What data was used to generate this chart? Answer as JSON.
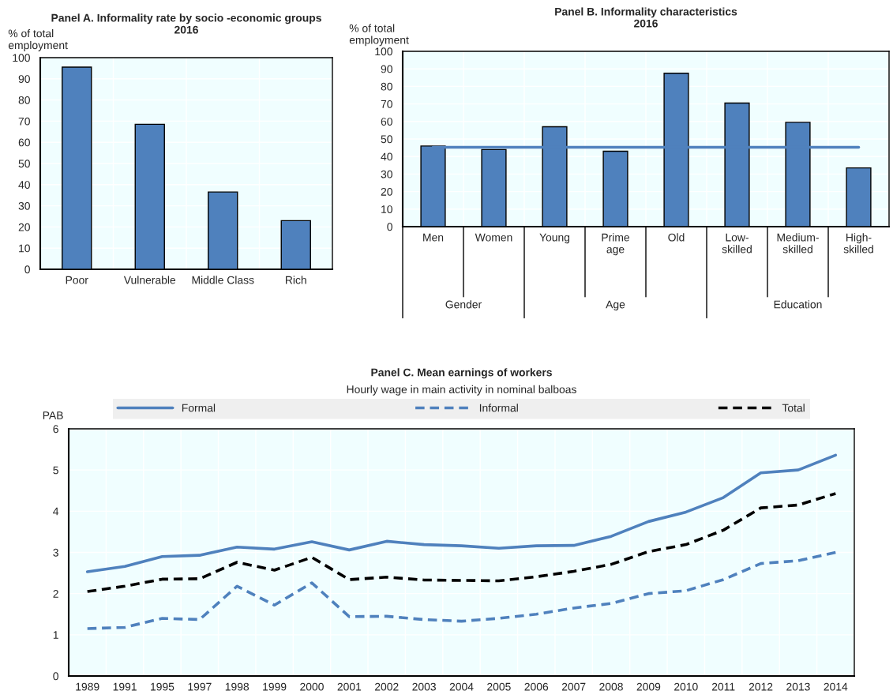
{
  "chart_data": [
    {
      "type": "bar",
      "title": "Panel A. Informality rate by socio -economic groups\n2016",
      "ylabel": "% of total\nemployment",
      "categories": [
        "Poor",
        "Vulnerable",
        "Middle Class",
        "Rich"
      ],
      "series": [
        {
          "color": "#4f81bd",
          "values": [
            95.5,
            68.5,
            36.5,
            23
          ]
        }
      ],
      "ylim": [
        0,
        100
      ],
      "yticks": [
        0,
        10,
        20,
        30,
        40,
        50,
        60,
        70,
        80,
        90,
        100
      ],
      "grid": true,
      "legend": false
    },
    {
      "type": "bar",
      "title": "Panel B. Informality characteristics\n2016",
      "ylabel": "% of total\nemployment",
      "categories": [
        "Men",
        "Women",
        "Young",
        "Prime\nage",
        "Old",
        "Low-\nskilled",
        "Medium-\nskilled",
        "High-\nskilled"
      ],
      "series": [
        {
          "color": "#4f81bd",
          "values": [
            46,
            44,
            57,
            43,
            87.5,
            70.5,
            59.5,
            33.5
          ]
        },
        {
          "type": "line",
          "color": "#4f81bd",
          "line_style": "solid",
          "values": [
            45.3,
            45.3,
            45.3,
            45.3,
            45.3,
            45.3,
            45.3,
            45.3
          ]
        }
      ],
      "annotations": [
        "Gender",
        "Age",
        "Education"
      ],
      "ylim": [
        0,
        100
      ],
      "yticks": [
        0,
        10,
        20,
        30,
        40,
        50,
        60,
        70,
        80,
        90,
        100
      ],
      "grid": true,
      "legend": false
    },
    {
      "type": "line",
      "title": "Panel C. Mean earnings of workers",
      "subtitle": "Hourly wage in main activity in nominal balboas",
      "ylabel": "PAB",
      "categories": [
        "1989",
        "1991",
        "1995",
        "1997",
        "1998",
        "1999",
        "2000",
        "2001",
        "2002",
        "2003",
        "2004",
        "2005",
        "2006",
        "2007",
        "2008",
        "2009",
        "2010",
        "2011",
        "2012",
        "2013",
        "2014"
      ],
      "series": [
        {
          "name": "Formal",
          "color": "#4f81bd",
          "line_style": "solid",
          "values": [
            2.53,
            2.66,
            2.9,
            2.93,
            3.13,
            3.08,
            3.26,
            3.06,
            3.27,
            3.19,
            3.16,
            3.1,
            3.16,
            3.17,
            3.39,
            3.75,
            3.98,
            4.33,
            4.93,
            5.0,
            5.36
          ]
        },
        {
          "name": "Informal",
          "color": "#4f81bd",
          "line_style": "dashed",
          "values": [
            1.15,
            1.18,
            1.4,
            1.37,
            2.18,
            1.72,
            2.26,
            1.44,
            1.45,
            1.37,
            1.33,
            1.4,
            1.5,
            1.65,
            1.76,
            2.0,
            2.07,
            2.34,
            2.73,
            2.8,
            3.0
          ]
        },
        {
          "name": "Total",
          "color": "#000000",
          "line_style": "dashed",
          "values": [
            2.05,
            2.18,
            2.35,
            2.36,
            2.76,
            2.57,
            2.88,
            2.34,
            2.4,
            2.33,
            2.32,
            2.31,
            2.41,
            2.54,
            2.71,
            3.02,
            3.19,
            3.54,
            4.08,
            4.15,
            4.43
          ]
        }
      ],
      "ylim": [
        0,
        6
      ],
      "yticks": [
        0,
        1,
        2,
        3,
        4,
        5,
        6
      ],
      "grid": true,
      "legend": "top"
    }
  ]
}
